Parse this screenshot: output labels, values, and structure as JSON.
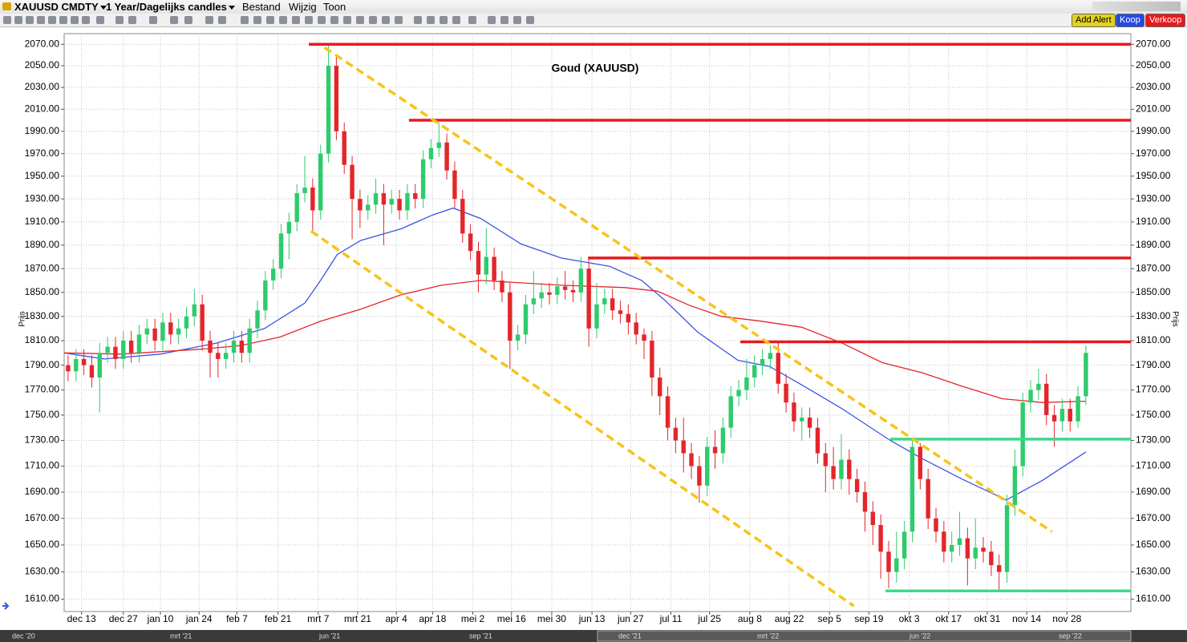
{
  "toolbar": {
    "symbol": "XAUUSD CMDTY",
    "period": "1 Year/Dagelijks candles",
    "menu": [
      "Bestand",
      "Wijzig",
      "Toon"
    ],
    "buttons": [
      "Add Alert",
      "Koop",
      "Verkoop"
    ]
  },
  "chart_data": {
    "type": "candlestick",
    "title": "Goud (XAUUSD)",
    "y_label": "Prijs",
    "log_scale": true,
    "grid": true,
    "up_color": "#2ecb6c",
    "down_color": "#e3262b",
    "xlim": [
      0,
      135.2
    ],
    "ylim": [
      1601,
      2080
    ],
    "xticks": [
      {
        "value": 2.2,
        "label": "dec 13"
      },
      {
        "value": 7.5,
        "label": "dec 27"
      },
      {
        "value": 12.2,
        "label": "jan 10"
      },
      {
        "value": 17.1,
        "label": "jan 24"
      },
      {
        "value": 21.9,
        "label": "feb 7"
      },
      {
        "value": 27.1,
        "label": "feb 21"
      },
      {
        "value": 32.2,
        "label": "mrt 7"
      },
      {
        "value": 37.2,
        "label": "mrt 21"
      },
      {
        "value": 42.1,
        "label": "apr 4"
      },
      {
        "value": 46.7,
        "label": "apr 18"
      },
      {
        "value": 51.8,
        "label": "mei 2"
      },
      {
        "value": 56.7,
        "label": "mei 16"
      },
      {
        "value": 61.8,
        "label": "mei 30"
      },
      {
        "value": 66.9,
        "label": "jun 13"
      },
      {
        "value": 71.8,
        "label": "jun 27"
      },
      {
        "value": 76.9,
        "label": "jul 11"
      },
      {
        "value": 81.8,
        "label": "jul 25"
      },
      {
        "value": 86.9,
        "label": "aug 8"
      },
      {
        "value": 91.9,
        "label": "aug 22"
      },
      {
        "value": 97.0,
        "label": "sep 5"
      },
      {
        "value": 102.0,
        "label": "sep 19"
      },
      {
        "value": 107.1,
        "label": "okt 3"
      },
      {
        "value": 112.1,
        "label": "okt 17"
      },
      {
        "value": 117.0,
        "label": "okt 31"
      },
      {
        "value": 122.0,
        "label": "nov 14"
      },
      {
        "value": 127.1,
        "label": "nov 28"
      }
    ],
    "yticks": [
      {
        "value": 1610,
        "label": "1610.00"
      },
      {
        "value": 1630,
        "label": "1630.00"
      },
      {
        "value": 1650,
        "label": "1650.00"
      },
      {
        "value": 1670,
        "label": "1670.00"
      },
      {
        "value": 1690,
        "label": "1690.00"
      },
      {
        "value": 1710,
        "label": "1710.00"
      },
      {
        "value": 1730,
        "label": "1730.00"
      },
      {
        "value": 1750,
        "label": "1750.00"
      },
      {
        "value": 1770,
        "label": "1770.00"
      },
      {
        "value": 1790,
        "label": "1790.00"
      },
      {
        "value": 1810,
        "label": "1810.00"
      },
      {
        "value": 1830,
        "label": "1830.00"
      },
      {
        "value": 1850,
        "label": "1850.00"
      },
      {
        "value": 1870,
        "label": "1870.00"
      },
      {
        "value": 1890,
        "label": "1890.00"
      },
      {
        "value": 1910,
        "label": "1910.00"
      },
      {
        "value": 1930,
        "label": "1930.00"
      },
      {
        "value": 1950,
        "label": "1950.00"
      },
      {
        "value": 1970,
        "label": "1970.00"
      },
      {
        "value": 1990,
        "label": "1990.00"
      },
      {
        "value": 2010,
        "label": "2010.00"
      },
      {
        "value": 2030,
        "label": "2030.00"
      },
      {
        "value": 2050,
        "label": "2050.00"
      },
      {
        "value": 2070,
        "label": "2070.00"
      }
    ],
    "open": [
      1790,
      1785,
      1795,
      1790,
      1780,
      1800,
      1805,
      1795,
      1810,
      1800,
      1815,
      1820,
      1810,
      1825,
      1815,
      1820,
      1830,
      1840,
      1810,
      1800,
      1795,
      1800,
      1810,
      1800,
      1820,
      1835,
      1860,
      1870,
      1900,
      1910,
      1935,
      1940,
      1920,
      1970,
      2050,
      1990,
      1960,
      1930,
      1920,
      1925,
      1935,
      1925,
      1930,
      1920,
      1935,
      1930,
      1965,
      1975,
      1980,
      1955,
      1930,
      1900,
      1885,
      1865,
      1880,
      1860,
      1850,
      1810,
      1815,
      1840,
      1845,
      1850,
      1848,
      1855,
      1852,
      1850,
      1870,
      1820,
      1840,
      1845,
      1835,
      1832,
      1825,
      1815,
      1810,
      1780,
      1765,
      1740,
      1730,
      1720,
      1710,
      1695,
      1725,
      1720,
      1740,
      1765,
      1770,
      1780,
      1790,
      1795,
      1800,
      1775,
      1760,
      1745,
      1748,
      1740,
      1720,
      1710,
      1700,
      1715,
      1700,
      1690,
      1675,
      1665,
      1645,
      1630,
      1640,
      1660,
      1725,
      1700,
      1670,
      1660,
      1645,
      1650,
      1655,
      1640,
      1648,
      1645,
      1635,
      1630,
      1680,
      1710,
      1760,
      1770,
      1775,
      1750,
      1745,
      1755,
      1745,
      1765
    ],
    "high": [
      1798,
      1803,
      1803,
      1798,
      1808,
      1813,
      1813,
      1818,
      1818,
      1823,
      1828,
      1828,
      1833,
      1833,
      1828,
      1838,
      1853,
      1848,
      1818,
      1808,
      1808,
      1818,
      1818,
      1828,
      1843,
      1868,
      1878,
      1908,
      1918,
      1943,
      1968,
      1948,
      1978,
      2070,
      2058,
      1998,
      1968,
      1938,
      1933,
      1948,
      1943,
      1938,
      1938,
      1943,
      1943,
      1973,
      1983,
      1998,
      1988,
      1963,
      1938,
      1908,
      1893,
      1905,
      1888,
      1868,
      1858,
      1823,
      1848,
      1868,
      1858,
      1858,
      1863,
      1868,
      1860,
      1880,
      1878,
      1858,
      1853,
      1853,
      1843,
      1840,
      1833,
      1820,
      1818,
      1788,
      1773,
      1748,
      1748,
      1728,
      1718,
      1733,
      1738,
      1748,
      1773,
      1778,
      1795,
      1798,
      1803,
      1806,
      1808,
      1783,
      1768,
      1756,
      1756,
      1748,
      1728,
      1725,
      1735,
      1723,
      1708,
      1698,
      1683,
      1673,
      1653,
      1660,
      1668,
      1730,
      1728,
      1708,
      1678,
      1668,
      1660,
      1675,
      1663,
      1670,
      1656,
      1653,
      1643,
      1688,
      1723,
      1768,
      1778,
      1787,
      1783,
      1758,
      1763,
      1763,
      1773,
      1806
    ],
    "low": [
      1777,
      1777,
      1782,
      1772,
      1752,
      1792,
      1787,
      1787,
      1792,
      1792,
      1807,
      1802,
      1802,
      1807,
      1807,
      1812,
      1822,
      1802,
      1780,
      1780,
      1787,
      1792,
      1792,
      1792,
      1812,
      1827,
      1852,
      1862,
      1878,
      1902,
      1927,
      1900,
      1912,
      1962,
      1982,
      1952,
      1895,
      1905,
      1912,
      1917,
      1890,
      1917,
      1912,
      1912,
      1922,
      1922,
      1957,
      1967,
      1947,
      1922,
      1892,
      1877,
      1850,
      1857,
      1852,
      1842,
      1787,
      1802,
      1807,
      1832,
      1837,
      1840,
      1840,
      1844,
      1842,
      1842,
      1805,
      1812,
      1832,
      1827,
      1824,
      1815,
      1807,
      1795,
      1765,
      1750,
      1730,
      1720,
      1705,
      1700,
      1682,
      1687,
      1708,
      1712,
      1732,
      1757,
      1762,
      1772,
      1782,
      1787,
      1767,
      1752,
      1737,
      1730,
      1732,
      1712,
      1690,
      1692,
      1692,
      1688,
      1682,
      1660,
      1650,
      1625,
      1618,
      1622,
      1632,
      1652,
      1692,
      1662,
      1652,
      1637,
      1637,
      1642,
      1620,
      1632,
      1637,
      1627,
      1617,
      1622,
      1672,
      1702,
      1752,
      1762,
      1742,
      1725,
      1737,
      1737,
      1740,
      1758
    ],
    "close": [
      1785,
      1795,
      1790,
      1780,
      1800,
      1805,
      1795,
      1810,
      1800,
      1815,
      1820,
      1810,
      1825,
      1815,
      1820,
      1830,
      1840,
      1810,
      1800,
      1795,
      1800,
      1810,
      1800,
      1820,
      1835,
      1860,
      1870,
      1900,
      1910,
      1935,
      1940,
      1920,
      1970,
      2050,
      1990,
      1960,
      1930,
      1920,
      1925,
      1935,
      1925,
      1930,
      1920,
      1935,
      1930,
      1965,
      1975,
      1980,
      1955,
      1930,
      1900,
      1885,
      1865,
      1880,
      1860,
      1850,
      1810,
      1815,
      1840,
      1845,
      1850,
      1848,
      1855,
      1852,
      1850,
      1870,
      1820,
      1840,
      1845,
      1835,
      1832,
      1825,
      1815,
      1810,
      1780,
      1765,
      1740,
      1730,
      1720,
      1710,
      1695,
      1725,
      1720,
      1740,
      1765,
      1770,
      1780,
      1790,
      1795,
      1800,
      1775,
      1760,
      1745,
      1748,
      1740,
      1720,
      1710,
      1700,
      1715,
      1700,
      1690,
      1675,
      1665,
      1645,
      1630,
      1640,
      1660,
      1725,
      1700,
      1670,
      1660,
      1645,
      1650,
      1655,
      1640,
      1648,
      1645,
      1635,
      1630,
      1680,
      1710,
      1760,
      1770,
      1775,
      1750,
      1745,
      1755,
      1745,
      1765,
      1800
    ],
    "overlays": [
      {
        "color": "#3d52e6",
        "x": [
          0,
          5.1,
          12.2,
          19.3,
          25.4,
          30.5,
          32.5,
          34.6,
          37.6,
          42.7,
          46.7,
          49.3,
          52.8,
          57.9,
          63,
          69.1,
          73.2,
          76.2,
          80.3,
          85.4,
          89.4,
          93.5,
          98.6,
          104.7,
          108.7,
          113.8,
          119.4,
          124,
          129.5
        ],
        "values": [
          1800,
          1795,
          1799,
          1808,
          1820,
          1841,
          1860,
          1882,
          1894,
          1904,
          1916,
          1922,
          1913,
          1891,
          1879,
          1872,
          1860,
          1843,
          1817,
          1794,
          1789,
          1774,
          1755,
          1730,
          1716,
          1700,
          1684,
          1699,
          1721
        ]
      },
      {
        "color": "#e3262b",
        "x": [
          0,
          7.1,
          17.3,
          22.4,
          27.4,
          32.5,
          37.6,
          42.7,
          47.8,
          52.8,
          57.9,
          63,
          71.1,
          75.2,
          79.3,
          83.3,
          88.4,
          93.5,
          98.6,
          103.7,
          108.7,
          113.8,
          118.9,
          124,
          129.5
        ],
        "values": [
          1800,
          1799,
          1803,
          1806,
          1813,
          1826,
          1836,
          1848,
          1856,
          1860,
          1858,
          1856,
          1854,
          1851,
          1839,
          1830,
          1826,
          1821,
          1808,
          1792,
          1784,
          1773,
          1763,
          1760,
          1761
        ]
      }
    ],
    "levels": [
      {
        "color": "#e8191c",
        "style": "solid",
        "x": [
          31,
          135.2
        ],
        "values": [
          2070,
          2070
        ]
      },
      {
        "color": "#e8191c",
        "style": "solid",
        "x": [
          43.7,
          135.2
        ],
        "values": [
          2000,
          2000
        ]
      },
      {
        "color": "#e8191c",
        "style": "solid",
        "x": [
          66.4,
          135.2
        ],
        "values": [
          1879,
          1879
        ]
      },
      {
        "color": "#e8191c",
        "style": "solid",
        "x": [
          85.7,
          135.2
        ],
        "values": [
          1809,
          1809
        ]
      },
      {
        "color": "#3ed98a",
        "style": "solid",
        "x": [
          104.7,
          135.2
        ],
        "values": [
          1731,
          1731
        ]
      },
      {
        "color": "#3ed98a",
        "style": "solid",
        "x": [
          104.1,
          135.2
        ],
        "values": [
          1616,
          1616
        ]
      },
      {
        "color": "#f5c518",
        "style": "dashed",
        "x": [
          33,
          125.2
        ],
        "values": [
          2067,
          1660
        ]
      },
      {
        "color": "#f5c518",
        "style": "dashed",
        "x": [
          31.3,
          100.1
        ],
        "values": [
          1902,
          1605
        ]
      }
    ]
  },
  "navigator": {
    "labels": [
      "dec '20",
      "mrt '21",
      "jun '21",
      "sep '21",
      "dec '21",
      "mrt '22",
      "jun '22",
      "sep '22"
    ]
  }
}
